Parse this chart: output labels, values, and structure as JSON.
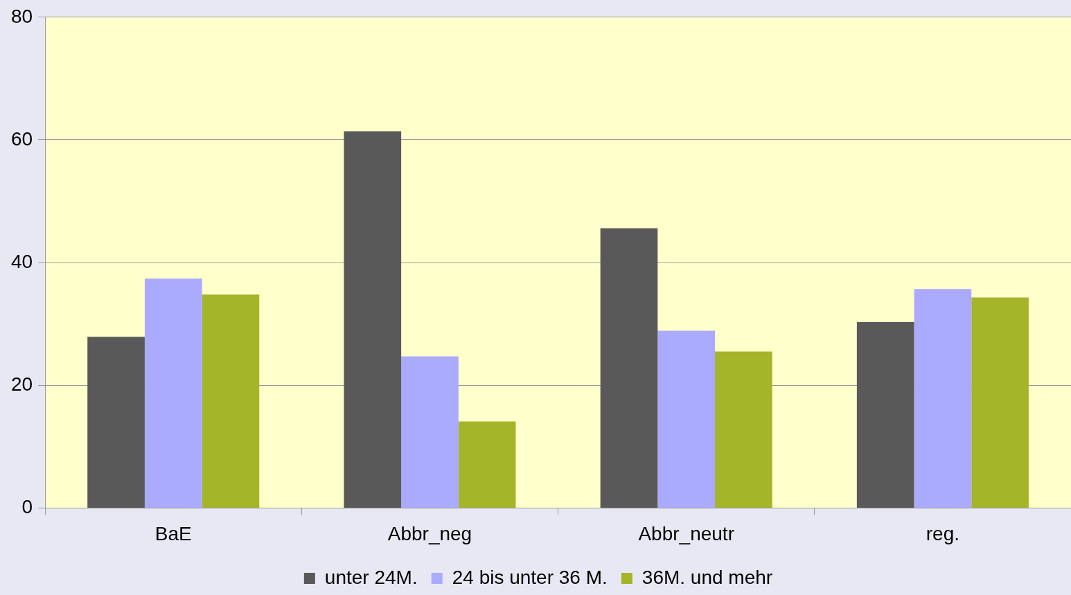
{
  "chart_data": {
    "type": "bar",
    "categories": [
      "BaE",
      "Abbr_neg",
      "Abbr_neutr",
      "reg."
    ],
    "series": [
      {
        "name": "unter 24M.",
        "color": "#595959",
        "values": [
          27.9,
          61.4,
          45.6,
          30.3
        ]
      },
      {
        "name": "24 bis unter 36 M.",
        "color": "#aaaaff",
        "values": [
          37.4,
          24.7,
          28.9,
          35.7
        ]
      },
      {
        "name": "36M. und mehr",
        "color": "#a5b52a",
        "values": [
          34.8,
          14.1,
          25.5,
          34.3
        ]
      }
    ],
    "ylim": [
      0,
      80
    ],
    "yticks": [
      0,
      20,
      40,
      60,
      80
    ],
    "grid": "y",
    "legend": "bottom"
  }
}
